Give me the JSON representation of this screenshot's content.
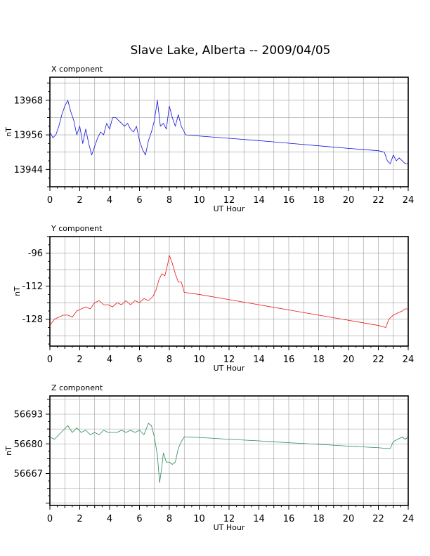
{
  "title": "Slave Lake, Alberta -- 2009/04/05",
  "chart_data": [
    {
      "type": "line",
      "panel_label": "X component",
      "xlabel": "UT Hour",
      "ylabel": "nT",
      "xlim": [
        0,
        24
      ],
      "ylim": [
        13938,
        13976
      ],
      "xticks": [
        0,
        2,
        4,
        6,
        8,
        10,
        12,
        14,
        16,
        18,
        20,
        22,
        24
      ],
      "yticks": [
        13944,
        13956,
        13968
      ],
      "grid": true,
      "color": "#1010e0",
      "series": [
        {
          "x": [
            0,
            0.2,
            0.4,
            0.6,
            0.8,
            1.0,
            1.2,
            1.4,
            1.6,
            1.8,
            2.0,
            2.2,
            2.4,
            2.6,
            2.8,
            3.0,
            3.2,
            3.4,
            3.6,
            3.8,
            4.0,
            4.2,
            4.4,
            4.6,
            4.8,
            5.0,
            5.2,
            5.4,
            5.6,
            5.8,
            6.0,
            6.2,
            6.4,
            6.6,
            6.8,
            7.0,
            7.2,
            7.4,
            7.6,
            7.8,
            8.0,
            8.2,
            8.4,
            8.6,
            8.8,
            9.0,
            9.1,
            10,
            12,
            14,
            16,
            18,
            20,
            22.0,
            22.4,
            22.6,
            22.8,
            23.0,
            23.2,
            23.4,
            23.6,
            23.8,
            24.0
          ],
          "y": [
            13957,
            13955,
            13956,
            13959,
            13963,
            13966,
            13968,
            13964,
            13961,
            13956,
            13959,
            13953,
            13958,
            13953,
            13949,
            13952,
            13955,
            13957,
            13956,
            13960,
            13958,
            13962,
            13962,
            13961,
            13960,
            13959,
            13960,
            13958,
            13957,
            13959,
            13954,
            13951,
            13949,
            13954,
            13957,
            13961,
            13968,
            13959,
            13960,
            13958,
            13966,
            13962,
            13959,
            13963,
            13959,
            13957,
            13956,
            13955.6,
            13954.8,
            13954,
            13953.1,
            13952.2,
            13951.3,
            13950.5,
            13950,
            13947,
            13946,
            13949,
            13947,
            13948,
            13947,
            13946,
            13946
          ]
        }
      ]
    },
    {
      "type": "line",
      "panel_label": "Y component",
      "xlabel": "UT Hour",
      "ylabel": "nT",
      "xlim": [
        0,
        24
      ],
      "ylim": [
        -141,
        -88
      ],
      "xticks": [
        0,
        2,
        4,
        6,
        8,
        10,
        12,
        14,
        16,
        18,
        20,
        22,
        24
      ],
      "yticks": [
        -128,
        -112,
        -96
      ],
      "grid": true,
      "color": "#ee1111",
      "series": [
        {
          "x": [
            0,
            0.3,
            0.6,
            0.9,
            1.2,
            1.5,
            1.8,
            2.1,
            2.4,
            2.7,
            3.0,
            3.3,
            3.6,
            3.9,
            4.2,
            4.5,
            4.8,
            5.1,
            5.4,
            5.7,
            6.0,
            6.3,
            6.6,
            6.9,
            7.1,
            7.3,
            7.5,
            7.7,
            7.9,
            8.0,
            8.2,
            8.4,
            8.6,
            8.8,
            9.0,
            10,
            12,
            14,
            16,
            18,
            20,
            22.0,
            22.5,
            22.7,
            23.0,
            23.3,
            23.6,
            23.8,
            24.0
          ],
          "y": [
            -131,
            -128,
            -127,
            -126,
            -126,
            -127,
            -124,
            -123,
            -122,
            -123,
            -120,
            -119,
            -121,
            -121,
            -122,
            -120,
            -121,
            -119,
            -121,
            -119,
            -120,
            -118,
            -119,
            -117,
            -114,
            -109,
            -106,
            -107,
            -101,
            -97,
            -101,
            -106,
            -110,
            -110,
            -115,
            -116,
            -118.5,
            -121,
            -123.5,
            -126,
            -128.5,
            -131,
            -132,
            -128,
            -126,
            -125,
            -124,
            -123,
            -123
          ]
        }
      ]
    },
    {
      "type": "line",
      "panel_label": "Z component",
      "xlabel": "UT Hour",
      "ylabel": "nT",
      "xlim": [
        0,
        24
      ],
      "ylim": [
        56653,
        56701
      ],
      "xticks": [
        0,
        2,
        4,
        6,
        8,
        10,
        12,
        14,
        16,
        18,
        20,
        22,
        24
      ],
      "yticks": [
        56667,
        56680,
        56693
      ],
      "grid": true,
      "color": "#2a8a55",
      "series": [
        {
          "x": [
            0,
            0.3,
            0.6,
            0.9,
            1.2,
            1.5,
            1.8,
            2.1,
            2.4,
            2.7,
            3.0,
            3.3,
            3.6,
            3.9,
            4.2,
            4.5,
            4.8,
            5.1,
            5.4,
            5.7,
            6.0,
            6.3,
            6.6,
            6.8,
            7.0,
            7.2,
            7.35,
            7.5,
            7.6,
            7.7,
            7.8,
            8.0,
            8.2,
            8.4,
            8.6,
            8.8,
            9.0,
            10,
            12,
            14,
            16,
            18,
            20,
            22.0,
            22.5,
            22.8,
            23.0,
            23.3,
            23.6,
            23.8,
            24.0
          ],
          "y": [
            56683,
            56682,
            56684,
            56686,
            56688,
            56685,
            56687,
            56685,
            56686,
            56684,
            56685,
            56684,
            56686,
            56685,
            56685,
            56685,
            56686,
            56685,
            56686,
            56685,
            56686,
            56684,
            56689,
            56688,
            56683,
            56675,
            56663,
            56670,
            56676,
            56674,
            56672,
            56672,
            56671,
            56672,
            56678,
            56681,
            56683,
            56682.8,
            56682,
            56681.3,
            56680.5,
            56679.8,
            56679,
            56678.3,
            56678,
            56678,
            56681,
            56682,
            56683,
            56682,
            56683
          ]
        }
      ]
    }
  ]
}
